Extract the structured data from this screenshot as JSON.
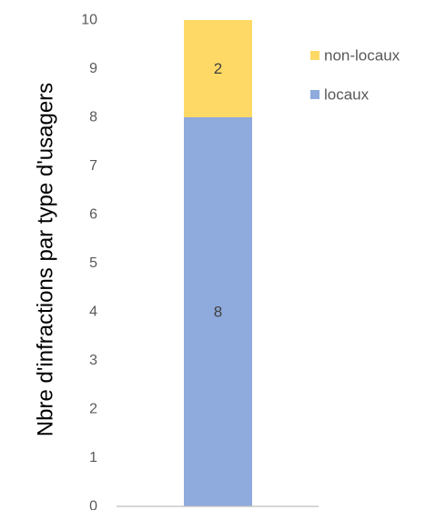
{
  "chart_data": {
    "type": "bar",
    "stacked": true,
    "categories": [
      ""
    ],
    "series": [
      {
        "name": "locaux",
        "values": [
          8
        ],
        "color": "#8faadc"
      },
      {
        "name": "non-locaux",
        "values": [
          2
        ],
        "color": "#ffd966"
      }
    ],
    "xlabel": "",
    "ylabel": "Nbre d'infractions par type d'usagers",
    "ylim": [
      0,
      10
    ],
    "yticks": [
      0,
      1,
      2,
      3,
      4,
      5,
      6,
      7,
      8,
      9,
      10
    ],
    "grid": false,
    "legend_position": "top-right",
    "legend_order": [
      "non-locaux",
      "locaux"
    ],
    "data_labels": true
  }
}
